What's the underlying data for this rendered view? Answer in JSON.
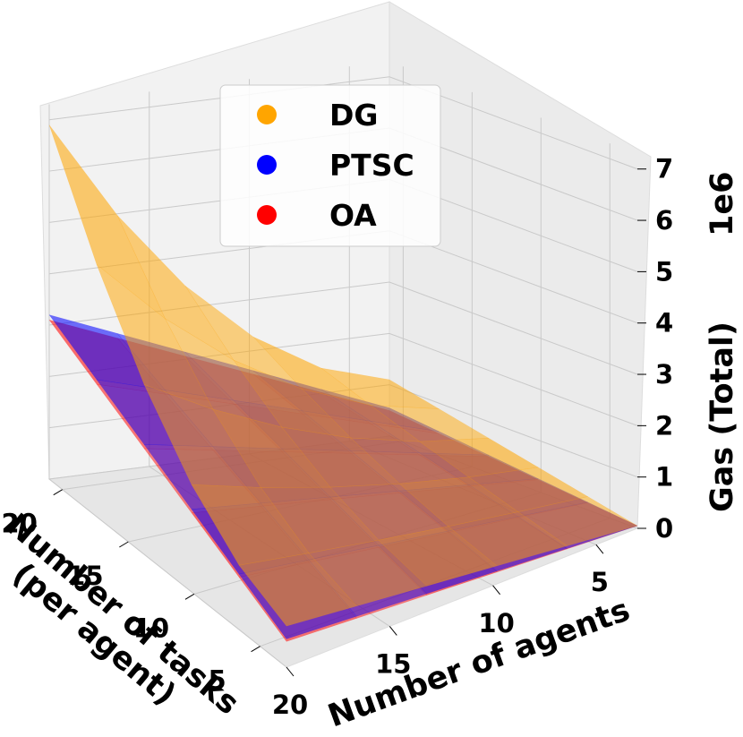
{
  "chart_data": {
    "type": "surface3d",
    "x_label": "Number of agents",
    "y_label_line1": "Number of tasks",
    "y_label_line2": "(per agent)",
    "z_label": "Gas (Total)",
    "z_scale": "1e6",
    "x_ticks": [
      "5",
      "10",
      "15",
      "20"
    ],
    "y_ticks": [
      "5",
      "10",
      "15",
      "20"
    ],
    "z_ticks": [
      "0",
      "1",
      "2",
      "3",
      "4",
      "5",
      "6",
      "7"
    ],
    "x_range": [
      3,
      20
    ],
    "y_range": [
      3,
      21
    ],
    "z_range": [
      0,
      7.3
    ],
    "legend": [
      {
        "name": "DG",
        "color": "#ffa500"
      },
      {
        "name": "PTSC",
        "color": "#0000ff"
      },
      {
        "name": "OA",
        "color": "#ff0000"
      }
    ],
    "corner_values_millions": {
      "DG": {
        "agents20_tasks20": 6.9,
        "agents3_tasks20": 1.1,
        "agents20_tasks3": 0.8,
        "agents3_tasks3": 0.05
      },
      "PTSC": {
        "agents20_tasks20": 3.2,
        "agents3_tasks20": 0.55,
        "agents20_tasks3": 0.55,
        "agents3_tasks3": 0.05
      },
      "OA": {
        "agents20_tasks20": 3.1,
        "agents3_tasks20": 0.5,
        "agents20_tasks3": 0.5,
        "agents3_tasks3": 0.05
      }
    }
  }
}
